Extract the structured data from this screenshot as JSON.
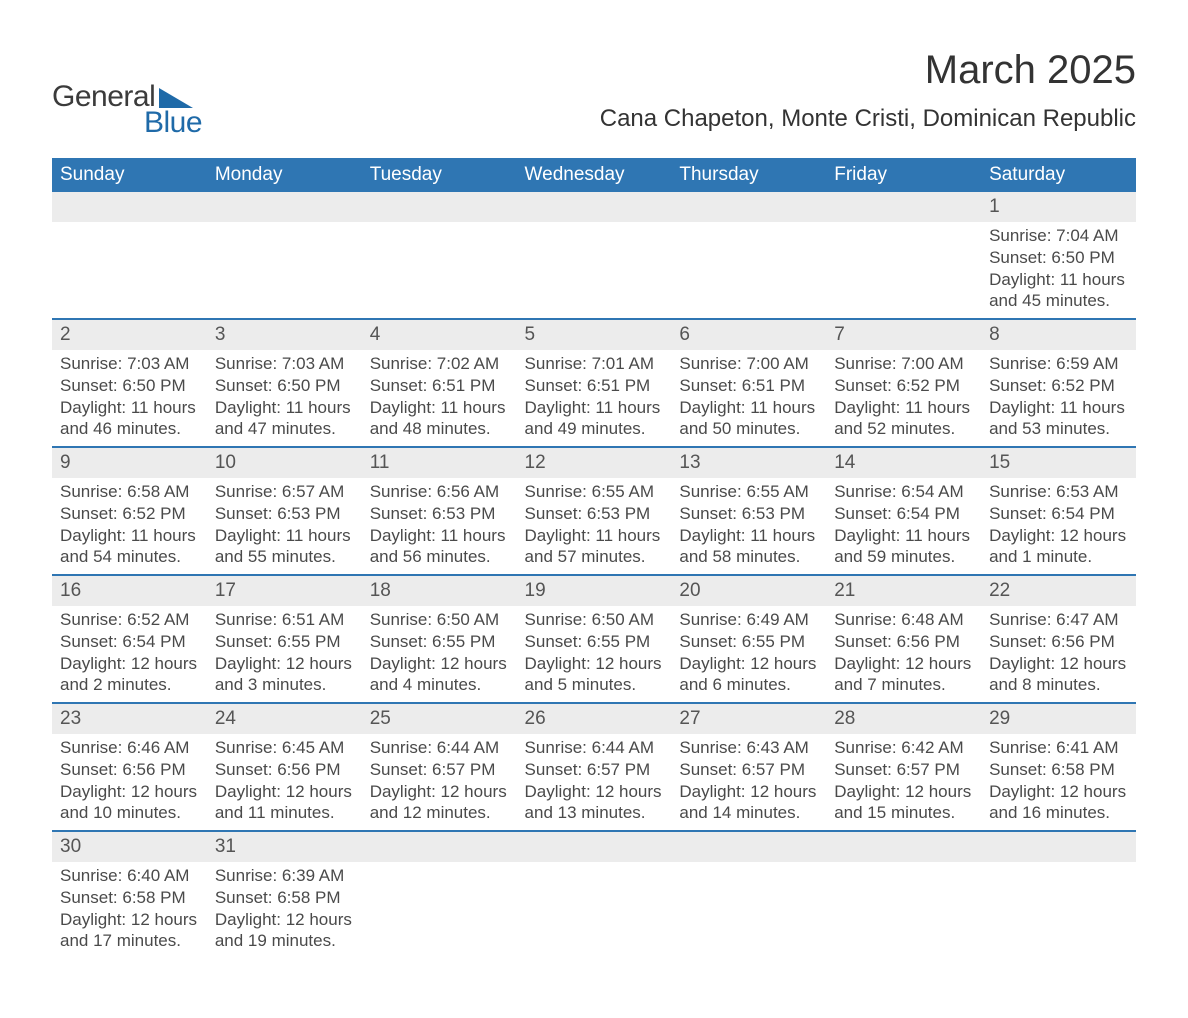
{
  "logo": {
    "word1": "General",
    "word2": "Blue",
    "text_color": "#3b3b3b",
    "accent_color": "#1f6aa8"
  },
  "header": {
    "month_title": "March 2025",
    "location": "Cana Chapeton, Monte Cristi, Dominican Republic"
  },
  "colors": {
    "header_bg": "#2f76b3",
    "header_text": "#ffffff",
    "daynum_bg": "#ececec",
    "row_divider": "#2f76b3",
    "body_text": "#4a4a4a",
    "page_bg": "#ffffff"
  },
  "typography": {
    "month_fontsize_pt": 30,
    "location_fontsize_pt": 18,
    "weekday_fontsize_pt": 14,
    "daynum_fontsize_pt": 14,
    "detail_fontsize_pt": 13
  },
  "calendar": {
    "weekdays": [
      "Sunday",
      "Monday",
      "Tuesday",
      "Wednesday",
      "Thursday",
      "Friday",
      "Saturday"
    ],
    "first_weekday_index": 6,
    "days": [
      {
        "n": 1,
        "sunrise": "7:04 AM",
        "sunset": "6:50 PM",
        "daylight": "11 hours and 45 minutes."
      },
      {
        "n": 2,
        "sunrise": "7:03 AM",
        "sunset": "6:50 PM",
        "daylight": "11 hours and 46 minutes."
      },
      {
        "n": 3,
        "sunrise": "7:03 AM",
        "sunset": "6:50 PM",
        "daylight": "11 hours and 47 minutes."
      },
      {
        "n": 4,
        "sunrise": "7:02 AM",
        "sunset": "6:51 PM",
        "daylight": "11 hours and 48 minutes."
      },
      {
        "n": 5,
        "sunrise": "7:01 AM",
        "sunset": "6:51 PM",
        "daylight": "11 hours and 49 minutes."
      },
      {
        "n": 6,
        "sunrise": "7:00 AM",
        "sunset": "6:51 PM",
        "daylight": "11 hours and 50 minutes."
      },
      {
        "n": 7,
        "sunrise": "7:00 AM",
        "sunset": "6:52 PM",
        "daylight": "11 hours and 52 minutes."
      },
      {
        "n": 8,
        "sunrise": "6:59 AM",
        "sunset": "6:52 PM",
        "daylight": "11 hours and 53 minutes."
      },
      {
        "n": 9,
        "sunrise": "6:58 AM",
        "sunset": "6:52 PM",
        "daylight": "11 hours and 54 minutes."
      },
      {
        "n": 10,
        "sunrise": "6:57 AM",
        "sunset": "6:53 PM",
        "daylight": "11 hours and 55 minutes."
      },
      {
        "n": 11,
        "sunrise": "6:56 AM",
        "sunset": "6:53 PM",
        "daylight": "11 hours and 56 minutes."
      },
      {
        "n": 12,
        "sunrise": "6:55 AM",
        "sunset": "6:53 PM",
        "daylight": "11 hours and 57 minutes."
      },
      {
        "n": 13,
        "sunrise": "6:55 AM",
        "sunset": "6:53 PM",
        "daylight": "11 hours and 58 minutes."
      },
      {
        "n": 14,
        "sunrise": "6:54 AM",
        "sunset": "6:54 PM",
        "daylight": "11 hours and 59 minutes."
      },
      {
        "n": 15,
        "sunrise": "6:53 AM",
        "sunset": "6:54 PM",
        "daylight": "12 hours and 1 minute."
      },
      {
        "n": 16,
        "sunrise": "6:52 AM",
        "sunset": "6:54 PM",
        "daylight": "12 hours and 2 minutes."
      },
      {
        "n": 17,
        "sunrise": "6:51 AM",
        "sunset": "6:55 PM",
        "daylight": "12 hours and 3 minutes."
      },
      {
        "n": 18,
        "sunrise": "6:50 AM",
        "sunset": "6:55 PM",
        "daylight": "12 hours and 4 minutes."
      },
      {
        "n": 19,
        "sunrise": "6:50 AM",
        "sunset": "6:55 PM",
        "daylight": "12 hours and 5 minutes."
      },
      {
        "n": 20,
        "sunrise": "6:49 AM",
        "sunset": "6:55 PM",
        "daylight": "12 hours and 6 minutes."
      },
      {
        "n": 21,
        "sunrise": "6:48 AM",
        "sunset": "6:56 PM",
        "daylight": "12 hours and 7 minutes."
      },
      {
        "n": 22,
        "sunrise": "6:47 AM",
        "sunset": "6:56 PM",
        "daylight": "12 hours and 8 minutes."
      },
      {
        "n": 23,
        "sunrise": "6:46 AM",
        "sunset": "6:56 PM",
        "daylight": "12 hours and 10 minutes."
      },
      {
        "n": 24,
        "sunrise": "6:45 AM",
        "sunset": "6:56 PM",
        "daylight": "12 hours and 11 minutes."
      },
      {
        "n": 25,
        "sunrise": "6:44 AM",
        "sunset": "6:57 PM",
        "daylight": "12 hours and 12 minutes."
      },
      {
        "n": 26,
        "sunrise": "6:44 AM",
        "sunset": "6:57 PM",
        "daylight": "12 hours and 13 minutes."
      },
      {
        "n": 27,
        "sunrise": "6:43 AM",
        "sunset": "6:57 PM",
        "daylight": "12 hours and 14 minutes."
      },
      {
        "n": 28,
        "sunrise": "6:42 AM",
        "sunset": "6:57 PM",
        "daylight": "12 hours and 15 minutes."
      },
      {
        "n": 29,
        "sunrise": "6:41 AM",
        "sunset": "6:58 PM",
        "daylight": "12 hours and 16 minutes."
      },
      {
        "n": 30,
        "sunrise": "6:40 AM",
        "sunset": "6:58 PM",
        "daylight": "12 hours and 17 minutes."
      },
      {
        "n": 31,
        "sunrise": "6:39 AM",
        "sunset": "6:58 PM",
        "daylight": "12 hours and 19 minutes."
      }
    ],
    "labels": {
      "sunrise_prefix": "Sunrise: ",
      "sunset_prefix": "Sunset: ",
      "daylight_prefix": "Daylight: "
    }
  }
}
